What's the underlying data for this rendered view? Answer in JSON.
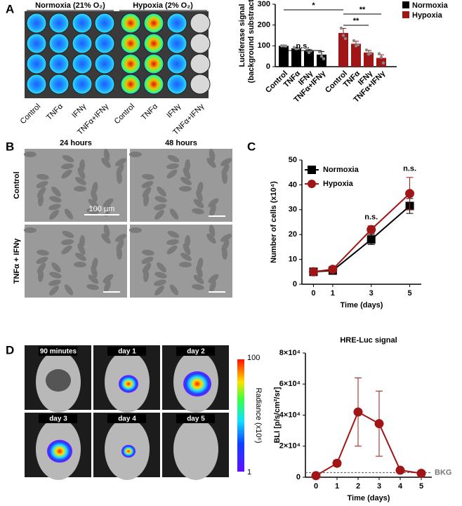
{
  "panel_labels": [
    "A",
    "B",
    "C",
    "D"
  ],
  "plate": {
    "groups": [
      "Normoxia (21% O₂)",
      "Hypoxia (2% O₂)"
    ],
    "columns": [
      "Control",
      "TNFα",
      "IFNγ",
      "TNFα+IFNγ",
      "Control",
      "TNFα",
      "IFNγ",
      "TNFα+IFNγ"
    ]
  },
  "micrographs": {
    "columns": [
      "24 hours",
      "48 hours"
    ],
    "rows": [
      "Control",
      "TNFα + IFNγ"
    ],
    "scale_bar": "100 µm"
  },
  "mouse_images": {
    "labels": [
      "90 minutes",
      "day 1",
      "day 2",
      "day 3",
      "day 4",
      "day 5"
    ],
    "colorbar": {
      "title": "Radiance (x10⁶)",
      "max": "100",
      "min": "1"
    }
  },
  "chart_data": [
    {
      "type": "bar",
      "ylabel": [
        "Luciferase signal",
        "(background substracted)"
      ],
      "categories": [
        "Control",
        "TNFα",
        "IFNγ",
        "TNFα+IFNγ"
      ],
      "series": [
        {
          "name": "Normoxia",
          "color": "#000000",
          "values": [
            100,
            88,
            75,
            58
          ],
          "errors": [
            2,
            5,
            8,
            15
          ],
          "points": [
            [
              100,
              100,
              99
            ],
            [
              92,
              84,
              88
            ],
            [
              80,
              68,
              77
            ],
            [
              72,
              50,
              38
            ]
          ]
        },
        {
          "name": "Hypoxia",
          "color": "#a01616",
          "values": [
            162,
            110,
            68,
            42
          ],
          "errors": [
            22,
            12,
            10,
            15
          ],
          "points": [
            [
              185,
              150,
              135
            ],
            [
              125,
              100,
              105
            ],
            [
              80,
              60,
              65
            ],
            [
              62,
              45,
              18
            ]
          ]
        }
      ],
      "ylim": [
        0,
        300
      ],
      "yticks": [
        0,
        100,
        200,
        300
      ],
      "significance": [
        "*",
        "n.s.",
        "**",
        "**"
      ]
    },
    {
      "type": "line",
      "xlabel": "Time (days)",
      "ylabel": "Number of cells (x10⁴)",
      "x": [
        0,
        1,
        3,
        5
      ],
      "series": [
        {
          "name": "Normoxia",
          "color": "#000000",
          "marker": "square",
          "values": [
            5,
            5.5,
            18,
            31.5
          ],
          "errors": [
            0.5,
            0.5,
            2,
            3
          ]
        },
        {
          "name": "Hypoxia",
          "color": "#a01616",
          "marker": "circle",
          "values": [
            5,
            6,
            22,
            36.5
          ],
          "errors": [
            0.5,
            0.5,
            1.5,
            6.5
          ]
        }
      ],
      "xlim": [
        -0.6,
        5.6
      ],
      "xticks": [
        0,
        1,
        3,
        5
      ],
      "ylim": [
        0,
        50
      ],
      "yticks": [
        0,
        10,
        20,
        30,
        40,
        50
      ],
      "legend": "upper left",
      "annotations": [
        {
          "x": 3,
          "text": "n.s."
        },
        {
          "x": 5,
          "text": "n.s."
        }
      ]
    },
    {
      "type": "line",
      "title": "HRE-Luc signal",
      "xlabel": "Time (days)",
      "ylabel": "BLI [p/s/cm²/sr]",
      "x": [
        0,
        1,
        2,
        3,
        4,
        5
      ],
      "series": [
        {
          "name": "HRE-Luc",
          "color": "#a01616",
          "marker": "circle",
          "values": [
            1000,
            9000,
            42000,
            34500,
            4500,
            2500
          ],
          "errors": [
            0,
            2000,
            22000,
            21000,
            0,
            0
          ]
        }
      ],
      "xlim": [
        -0.5,
        5.5
      ],
      "xticks": [
        0,
        1,
        2,
        3,
        4,
        5
      ],
      "ylim": [
        0,
        80000
      ],
      "yticks": [
        0,
        {
          "value": 20000,
          "label": "2×10⁴"
        },
        {
          "value": 40000,
          "label": "4×10⁴"
        },
        {
          "value": 60000,
          "label": "6×10⁴"
        },
        {
          "value": 80000,
          "label": "8×10⁴"
        }
      ],
      "background": {
        "value": 3000,
        "label": "BKG"
      }
    }
  ]
}
